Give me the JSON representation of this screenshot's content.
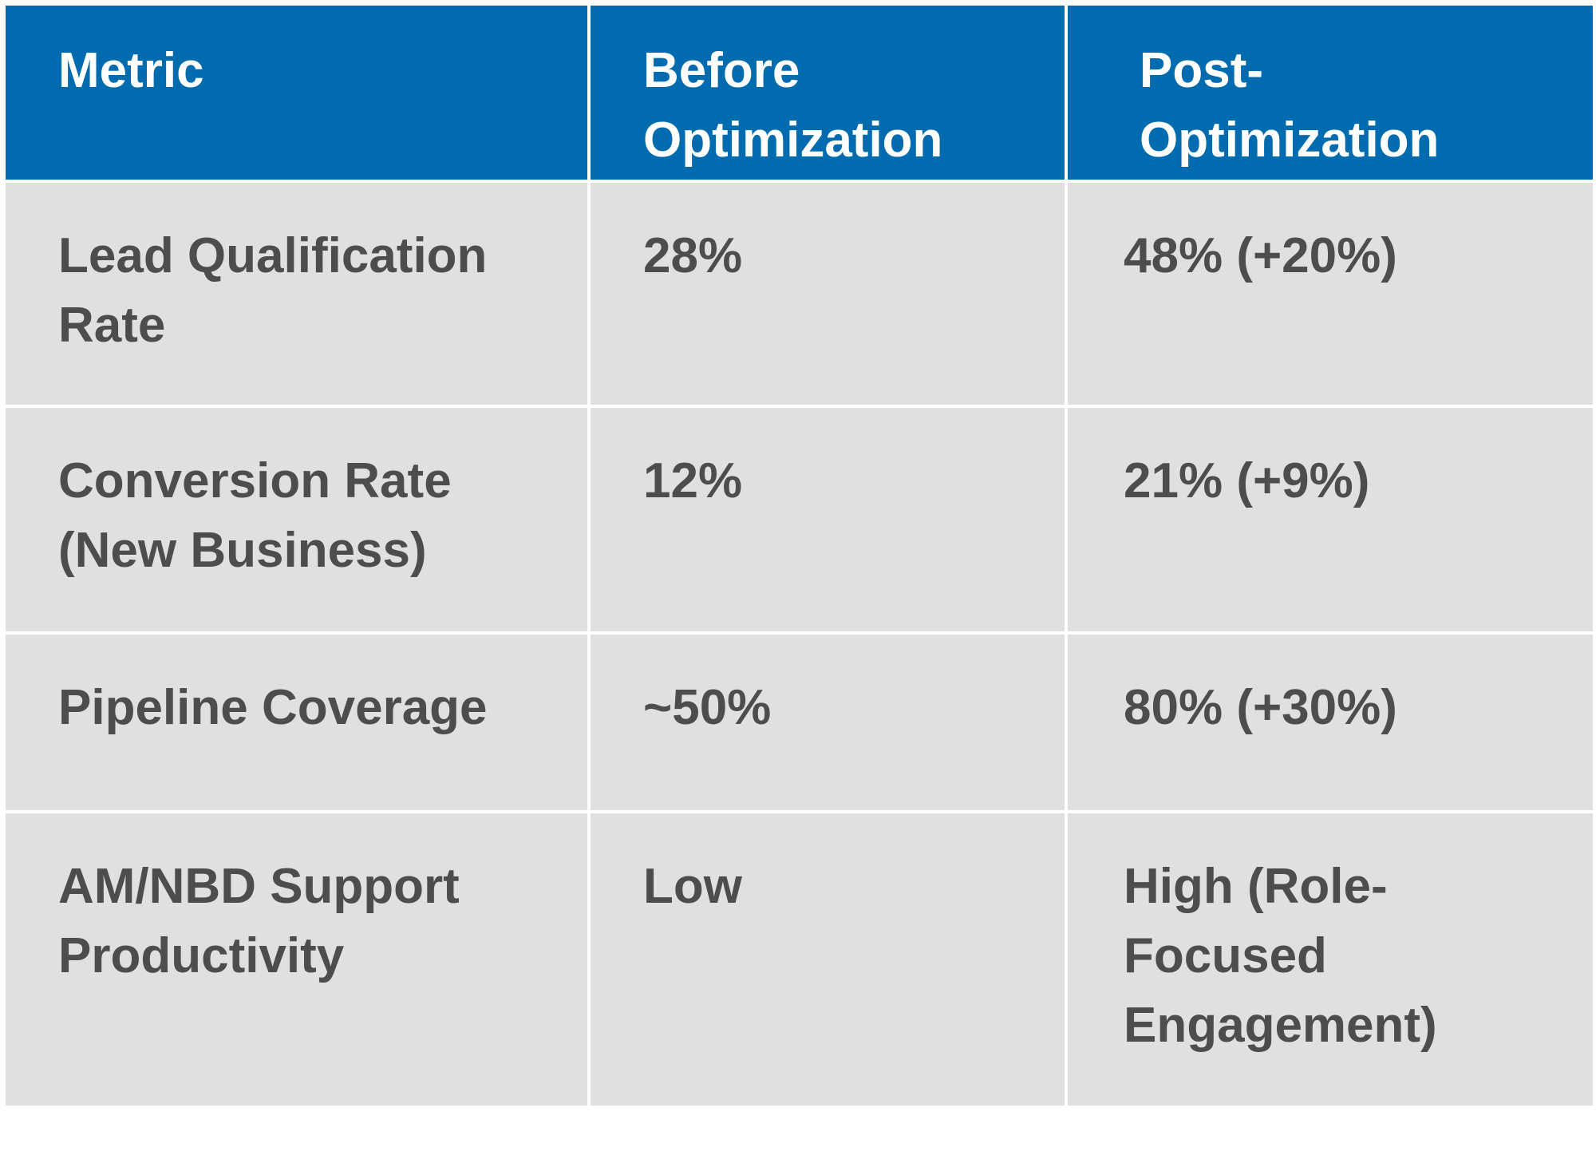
{
  "table": {
    "header": [
      "Metric",
      "Before Optimization",
      "Post-Optimization"
    ],
    "rows": [
      [
        "Lead Qualification Rate",
        "28%",
        "48% (+20%)"
      ],
      [
        "Conversion Rate (New Business)",
        "12%",
        "21% (+9%)"
      ],
      [
        "Pipeline Coverage",
        "~50%",
        "80% (+30%)"
      ],
      [
        "AM/NBD Support Productivity",
        "Low",
        "High (Role-Focused Engagement)"
      ]
    ]
  }
}
